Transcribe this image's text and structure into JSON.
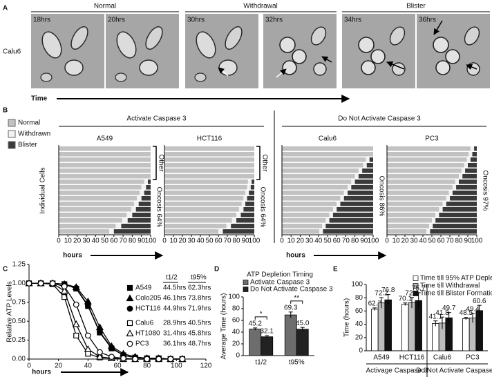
{
  "panel_a": {
    "letter": "A",
    "groups": [
      "Normal",
      "Withdrawal",
      "Blister"
    ],
    "frames": [
      "18hrs",
      "20hrs",
      "30hrs",
      "32hrs",
      "34hrs",
      "36hrs"
    ],
    "row_label": "Calu6",
    "time_label": "Time"
  },
  "panel_b": {
    "letter": "B",
    "legend": [
      {
        "name": "Normal",
        "color": "#c2c2c2"
      },
      {
        "name": "Withdrawn",
        "color": "#f2f2f2"
      },
      {
        "name": "Blister",
        "color": "#3a3a3a"
      }
    ],
    "y_label": "Individual Cells",
    "x_label": "hours",
    "xlim": [
      0,
      100
    ],
    "xticks": [
      0,
      10,
      20,
      30,
      40,
      50,
      60,
      70,
      80,
      90,
      100
    ],
    "groups": [
      {
        "title": "Activate Caspase 3",
        "panels": [
          {
            "title": "A549",
            "other_label": "Other",
            "oncosis_label": "Oncosis 64%",
            "withdrawn": [
              null,
              null,
              null,
              null,
              null,
              null,
              93,
              90,
              88,
              85,
              82,
              79,
              74,
              69,
              62,
              55
            ],
            "blister": [
              null,
              null,
              null,
              null,
              null,
              null,
              97,
              95,
              93,
              90,
              87,
              84,
              80,
              75,
              68,
              60
            ]
          },
          {
            "title": "HCT116",
            "other_label": "Other",
            "oncosis_label": "Oncosis 64%",
            "withdrawn": [
              null,
              null,
              null,
              null,
              null,
              null,
              93,
              92,
              90,
              88,
              86,
              83,
              80,
              75,
              69,
              60
            ],
            "blister": [
              null,
              null,
              null,
              null,
              null,
              null,
              97,
              96,
              94,
              92,
              90,
              88,
              85,
              80,
              74,
              65
            ]
          }
        ]
      },
      {
        "title": "Do Not Activate Caspase 3",
        "panels": [
          {
            "title": "Calu6",
            "oncosis_label": "Oncosis 86%",
            "withdrawn": [
              null,
              null,
              92,
              89,
              84,
              80,
              76,
              72,
              68,
              64,
              60,
              56,
              52,
              48,
              44,
              41
            ],
            "blister": [
              null,
              null,
              96,
              93,
              88,
              84,
              80,
              76,
              72,
              68,
              64,
              60,
              56,
              52,
              48,
              45
            ]
          },
          {
            "title": "PC3",
            "oncosis_label": "Oncosis 97%",
            "withdrawn": [
              93,
              91,
              89,
              86,
              83,
              80,
              76,
              73,
              69,
              66,
              62,
              58,
              54,
              50,
              47,
              44
            ],
            "blister": [
              97,
              95,
              93,
              90,
              87,
              84,
              80,
              77,
              73,
              70,
              66,
              62,
              58,
              54,
              51,
              48
            ]
          }
        ]
      }
    ]
  },
  "chart_data": [
    {
      "type": "line",
      "letter": "C",
      "x_label": "hours",
      "y_label": "Relative ATP Levels",
      "xlim": [
        0,
        120
      ],
      "xticks": [
        0,
        20,
        40,
        60,
        80,
        100,
        120
      ],
      "ylim": [
        0,
        1.25
      ],
      "yticks": [
        {
          "value": 0,
          "label": "0.00"
        },
        0.25,
        {
          "value": 0.5,
          "label": "0.50"
        },
        0.75,
        {
          "value": 1,
          "label": "1.00"
        },
        1.25
      ],
      "table_headers": [
        "t1/2",
        "t95%"
      ],
      "x": [
        0,
        8,
        16,
        24,
        32,
        40,
        48,
        56,
        64,
        72,
        80,
        88,
        96,
        104
      ],
      "series": [
        {
          "name": "A549",
          "color": "#000000",
          "marker": "square",
          "filled": true,
          "t_half": "44.5hrs",
          "t_95": "62.3hrs",
          "values": [
            1,
            1,
            1,
            0.99,
            0.93,
            0.7,
            0.35,
            0.14,
            0.05,
            0.02,
            0.01,
            0.01,
            0,
            0
          ]
        },
        {
          "name": "Colo205",
          "color": "#000000",
          "marker": "triangle",
          "filled": true,
          "t_half": "46.1hrs",
          "t_95": "73.8hrs",
          "values": [
            1,
            1,
            1,
            0.99,
            0.95,
            0.76,
            0.42,
            0.17,
            0.07,
            0.03,
            0.01,
            0.01,
            0,
            0
          ]
        },
        {
          "name": "HCT116",
          "color": "#000000",
          "marker": "circle",
          "filled": true,
          "t_half": "44.9hrs",
          "t_95": "71.9hrs",
          "values": [
            1,
            1,
            1,
            0.99,
            0.94,
            0.71,
            0.36,
            0.15,
            0.05,
            0.02,
            0.01,
            0.01,
            0,
            0
          ]
        },
        {
          "name": "Calu6",
          "color": "#000000",
          "marker": "square",
          "filled": false,
          "t_half": "28.9hrs",
          "t_95": "40.5hrs",
          "values": [
            1,
            1,
            0.99,
            0.82,
            0.31,
            0.07,
            0.02,
            0.01,
            0,
            0,
            0,
            0,
            0,
            0
          ]
        },
        {
          "name": "HT1080",
          "color": "#000000",
          "marker": "triangle",
          "filled": false,
          "t_half": "31.4hrs",
          "t_95": "45.8hrs",
          "values": [
            1,
            1,
            1,
            0.9,
            0.46,
            0.13,
            0.03,
            0.01,
            0,
            0,
            0,
            0,
            0,
            0
          ]
        },
        {
          "name": "PC3",
          "color": "#000000",
          "marker": "circle",
          "filled": false,
          "t_half": "36.1hrs",
          "t_95": "48.7hrs",
          "values": [
            1,
            1,
            1,
            0.96,
            0.72,
            0.31,
            0.09,
            0.03,
            0.01,
            0,
            0,
            0,
            0,
            0
          ]
        }
      ]
    },
    {
      "type": "bar",
      "letter": "D",
      "title": "ATP Depletion Timing",
      "y_label": "Average Time (hours)",
      "categories": [
        "t1/2",
        "t95%"
      ],
      "ylim": [
        0,
        100
      ],
      "yticks": [
        0,
        20,
        40,
        60,
        80,
        100
      ],
      "significance": [
        "*",
        "**"
      ],
      "series": [
        {
          "name": "Activate Caspase 3",
          "color": "#6d6d6d",
          "values": [
            45.2,
            69.3
          ],
          "errors": [
            2,
            5
          ]
        },
        {
          "name": "Do Not Activate Caspase 3",
          "color": "#222222",
          "values": [
            32.1,
            45.0
          ],
          "value_labels": [
            "32.1",
            "45.0"
          ],
          "errors": [
            2,
            3
          ]
        }
      ]
    },
    {
      "type": "bar",
      "letter": "E",
      "y_label": "Time (hours)",
      "categories": [
        "A549",
        "HCT116",
        "Calu6",
        "PC3"
      ],
      "group_labels": [
        "Activage Caspase 3",
        "Do Not Activate Caspase 3"
      ],
      "ylim": [
        0,
        100
      ],
      "yticks": [
        0,
        20,
        40,
        60,
        80,
        100
      ],
      "series": [
        {
          "name": "Time till 95% ATP Depletion",
          "color": "#ffffff",
          "values": [
            62.7,
            70.1,
            41.1,
            48.5
          ],
          "errors": [
            2,
            2,
            4,
            2
          ]
        },
        {
          "name": "Time till Withdrawal",
          "color": "#bdbdbd",
          "values": [
            72.2,
            72.4,
            41.8,
            49.4
          ],
          "errors": [
            8,
            8,
            9,
            7
          ]
        },
        {
          "name": "Time till Blister Formation",
          "color": "#111111",
          "values": [
            76.8,
            75.7,
            49.7,
            60.6
          ],
          "errors": [
            8,
            12,
            8,
            8
          ]
        }
      ]
    }
  ]
}
